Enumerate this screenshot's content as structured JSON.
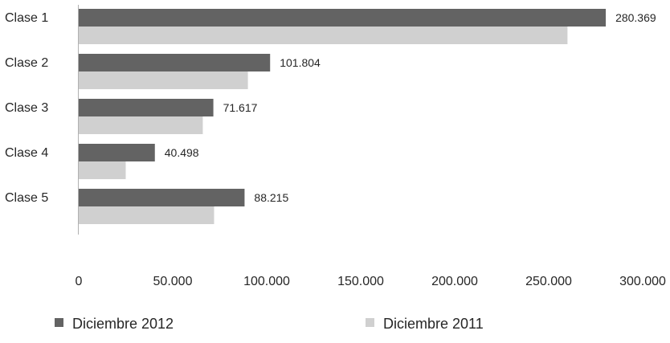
{
  "chart_data": {
    "type": "bar",
    "orientation": "horizontal",
    "categories": [
      "Clase 1",
      "Clase 2",
      "Clase 3",
      "Clase 4",
      "Clase 5"
    ],
    "series": [
      {
        "name": "Diciembre 2012",
        "values": [
          280369,
          101804,
          71617,
          40498,
          88215
        ],
        "data_labels": [
          "280.369",
          "101.804",
          "71.617",
          "40.498",
          "88.215"
        ],
        "color": "#636363"
      },
      {
        "name": "Diciembre 2011",
        "values": [
          260000,
          90000,
          66000,
          25000,
          72000
        ],
        "color": "#d0d0d0"
      }
    ],
    "x_ticks": [
      0,
      50000,
      100000,
      150000,
      200000,
      250000,
      300000
    ],
    "x_tick_labels": [
      "0",
      "50.000",
      "100.000",
      "150.000",
      "200.000",
      "250.000",
      "300.000"
    ],
    "xlim": [
      0,
      300000
    ],
    "title": "",
    "xlabel": "",
    "ylabel": "",
    "grid": false,
    "legend_position": "bottom"
  }
}
